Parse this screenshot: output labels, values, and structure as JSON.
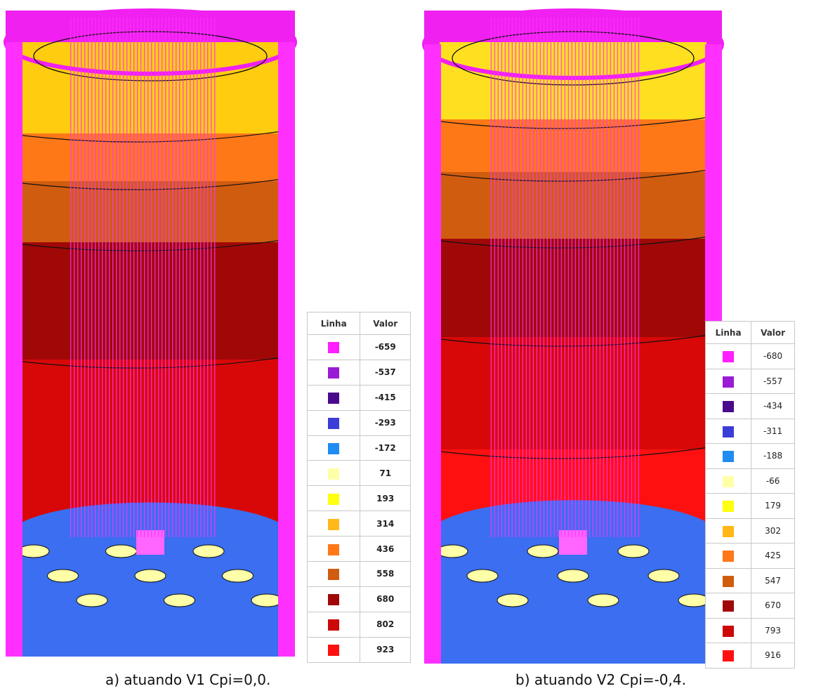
{
  "panels": [
    {
      "legend": {
        "header": [
          "Linha",
          "Valor"
        ],
        "rows": [
          {
            "color": "#ff1fff",
            "value": -659
          },
          {
            "color": "#9a1bd6",
            "value": -537
          },
          {
            "color": "#4a0a8c",
            "value": -415
          },
          {
            "color": "#3c3cd8",
            "value": -293
          },
          {
            "color": "#1e8cf0",
            "value": -172
          },
          {
            "color": "#ffffa8",
            "value": 71
          },
          {
            "color": "#ffff10",
            "value": 193
          },
          {
            "color": "#ffb818",
            "value": 314
          },
          {
            "color": "#ff7818",
            "value": 436
          },
          {
            "color": "#d05c10",
            "value": 558
          },
          {
            "color": "#a00808",
            "value": 680
          },
          {
            "color": "#cc0808",
            "value": 802
          },
          {
            "color": "#ff1010",
            "value": 923
          }
        ]
      },
      "caption": "a) atuando V1 Cpi=0,0."
    },
    {
      "legend": {
        "header": [
          "Linha",
          "Valor"
        ],
        "rows": [
          {
            "color": "#ff1fff",
            "value": -680
          },
          {
            "color": "#9a1bd6",
            "value": -557
          },
          {
            "color": "#4a0a8c",
            "value": -434
          },
          {
            "color": "#3c3cd8",
            "value": -311
          },
          {
            "color": "#1e8cf0",
            "value": -188
          },
          {
            "color": "#ffffa8",
            "value": -66
          },
          {
            "color": "#ffff10",
            "value": 179
          },
          {
            "color": "#ffb818",
            "value": 302
          },
          {
            "color": "#ff7818",
            "value": 425
          },
          {
            "color": "#d05c10",
            "value": 547
          },
          {
            "color": "#a00808",
            "value": 670
          },
          {
            "color": "#cc0808",
            "value": 793
          },
          {
            "color": "#ff1010",
            "value": 916
          }
        ]
      },
      "caption": "b) atuando V2 Cpi=-0,4."
    }
  ]
}
